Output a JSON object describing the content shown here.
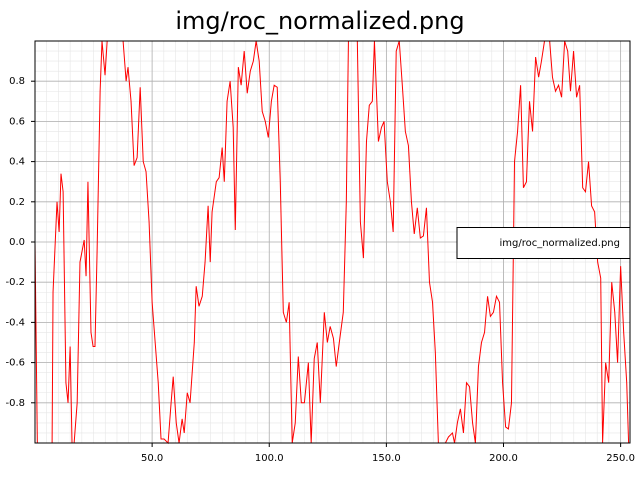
{
  "chart_data": {
    "type": "line",
    "title": "img/roc_normalized.png",
    "x": [
      0,
      1,
      7.3,
      7.7,
      9.4,
      10.3,
      11.1,
      12,
      13.2,
      14.1,
      15,
      15.8,
      16.7,
      18,
      19.2,
      21,
      21.8,
      22.6,
      23.9,
      24.8,
      25.6,
      26.5,
      27.8,
      28.6,
      29.9,
      30.8,
      37.6,
      38.9,
      39.7,
      41,
      42.3,
      43.6,
      44.9,
      46.2,
      47.4,
      48.7,
      50,
      51.3,
      52.6,
      53.8,
      55.1,
      56.8,
      58.1,
      59,
      60.3,
      61.5,
      62.8,
      63.7,
      65,
      66.2,
      68,
      68.8,
      70,
      71.4,
      72.6,
      73.9,
      74.8,
      75.6,
      77.4,
      78.6,
      79.9,
      80.8,
      82,
      83.3,
      84.6,
      85.5,
      86.8,
      88,
      89.3,
      90.6,
      91.9,
      93.2,
      94.4,
      95.7,
      97,
      98.3,
      99.6,
      100.9,
      102.1,
      103.4,
      104.7,
      106,
      107.3,
      108.5,
      109.8,
      111.1,
      112.4,
      113.7,
      115,
      116.7,
      117.9,
      119.2,
      120.5,
      121.8,
      123.5,
      124.8,
      126,
      127.4,
      128.6,
      129.9,
      131.6,
      132.9,
      133.8,
      137.6,
      138.9,
      140.2,
      141.5,
      142.7,
      144,
      144.9,
      146.6,
      147.9,
      149,
      150.4,
      151.7,
      152.9,
      154.2,
      155.5,
      156.8,
      158.1,
      159.4,
      160.7,
      161.9,
      163.2,
      164.5,
      165.8,
      167.1,
      168.4,
      169.7,
      170.9,
      172.2,
      175.2,
      176.5,
      178.2,
      179.1,
      180.3,
      181.6,
      182.9,
      184.2,
      185.5,
      186.8,
      188,
      189.3,
      190.6,
      191.9,
      193.2,
      194.4,
      195.7,
      197,
      198.3,
      199.6,
      200.9,
      202.1,
      203.4,
      204.7,
      206,
      207.3,
      208.5,
      209.8,
      211.1,
      212.4,
      213.7,
      215,
      216.2,
      217.5,
      219.7,
      220.9,
      222.2,
      223.5,
      224.8,
      226.1,
      227.4,
      228.6,
      229.9,
      231.2,
      232.5,
      233.8,
      235,
      236.3,
      237.6,
      238.9,
      240.2,
      241.5,
      242.3,
      243.6,
      244.9,
      246.2,
      247.5,
      248.7,
      250,
      251.3,
      252.6,
      253.4,
      254
    ],
    "series": [
      {
        "name": "img/roc_normalized.png",
        "color": "#ff0000",
        "values": [
          0,
          -1,
          -1,
          -0.25,
          0.2,
          0.05,
          0.34,
          0.25,
          -0.7,
          -0.8,
          -0.52,
          -1,
          -1,
          -0.8,
          -0.1,
          0.01,
          -0.17,
          0.3,
          -0.45,
          -0.52,
          -0.52,
          -0.05,
          0.75,
          1,
          0.83,
          1,
          1,
          0.8,
          0.87,
          0.7,
          0.38,
          0.42,
          0.77,
          0.4,
          0.35,
          0.1,
          -0.3,
          -0.5,
          -0.7,
          -0.98,
          -0.98,
          -1,
          -0.8,
          -0.67,
          -0.9,
          -1,
          -0.88,
          -0.95,
          -0.75,
          -0.8,
          -0.5,
          -0.22,
          -0.32,
          -0.27,
          -0.1,
          0.18,
          -0.1,
          0.15,
          0.3,
          0.32,
          0.47,
          0.3,
          0.7,
          0.8,
          0.57,
          0.06,
          0.87,
          0.78,
          0.95,
          0.74,
          0.85,
          0.9,
          1,
          0.9,
          0.65,
          0.6,
          0.52,
          0.7,
          0.78,
          0.77,
          0.3,
          -0.35,
          -0.4,
          -0.3,
          -1,
          -0.9,
          -0.57,
          -0.8,
          -0.8,
          -0.6,
          -1,
          -0.58,
          -0.5,
          -0.8,
          -0.35,
          -0.5,
          -0.42,
          -0.48,
          -0.62,
          -0.5,
          -0.35,
          0.2,
          1,
          1,
          0.1,
          -0.08,
          0.5,
          0.68,
          0.7,
          1,
          0.5,
          0.57,
          0.6,
          0.3,
          0.2,
          0.05,
          0.95,
          1,
          0.78,
          0.55,
          0.48,
          0.2,
          0.04,
          0.17,
          0.02,
          0.03,
          0.17,
          -0.2,
          -0.3,
          -0.55,
          -1,
          -1,
          -0.97,
          -0.95,
          -1,
          -0.9,
          -0.83,
          -0.95,
          -0.7,
          -0.72,
          -0.9,
          -1,
          -0.62,
          -0.5,
          -0.45,
          -0.27,
          -0.37,
          -0.35,
          -0.27,
          -0.3,
          -0.7,
          -0.92,
          -0.93,
          -0.8,
          0.4,
          0.55,
          0.78,
          0.27,
          0.3,
          0.7,
          0.55,
          0.92,
          0.82,
          0.9,
          1,
          1,
          0.82,
          0.75,
          0.78,
          0.72,
          1,
          0.95,
          0.75,
          0.95,
          0.72,
          0.78,
          0.27,
          0.25,
          0.4,
          0.18,
          0.15,
          -0.1,
          -0.18,
          -1,
          -0.6,
          -0.7,
          -0.2,
          -0.35,
          -0.6,
          -0.12,
          -0.45,
          -0.7,
          -1,
          -1
        ]
      }
    ],
    "xlim": [
      0,
      254
    ],
    "ylim": [
      -1,
      1
    ],
    "xticks": [
      {
        "value": 50,
        "label": "50.0"
      },
      {
        "value": 100,
        "label": "100.0"
      },
      {
        "value": 150,
        "label": "150.0"
      },
      {
        "value": 200,
        "label": "200.0"
      },
      {
        "value": 250,
        "label": "250.0"
      }
    ],
    "yticks": [
      -0.8,
      -0.6,
      -0.4,
      -0.2,
      {
        "value": 0,
        "label": "0.0"
      },
      0.2,
      0.4,
      0.6,
      0.8
    ],
    "grid": true,
    "minor_grid": true,
    "legend": "center right"
  }
}
